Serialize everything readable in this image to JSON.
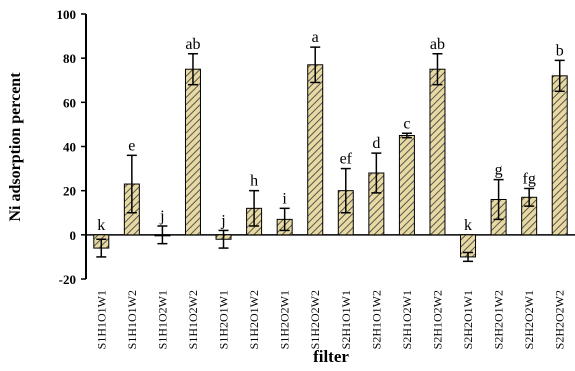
{
  "chart_data": {
    "type": "bar",
    "title": "",
    "xlabel": "filter",
    "ylabel": "Ni adsorption percent",
    "ylim": [
      -20,
      100
    ],
    "yticks": [
      -20,
      0,
      20,
      40,
      60,
      80,
      100
    ],
    "categories": [
      "S1H1O1W1",
      "S1H1O1W2",
      "S1H1O2W1",
      "S1H1O2W2",
      "S1H2O1W1",
      "S1H2O1W2",
      "S1H2O2W1",
      "S1H2O2W2",
      "S2H1O1W1",
      "S2H1O1W2",
      "S2H1O2W1",
      "S2H1O2W2",
      "S2H2O1W1",
      "S2H2O1W2",
      "S2H2O2W1",
      "S2H2O2W2"
    ],
    "values": [
      -6,
      23,
      0,
      75,
      -2,
      12,
      7,
      77,
      20,
      28,
      45,
      75,
      -10,
      16,
      17,
      72
    ],
    "errors": [
      4,
      13,
      4,
      7,
      4,
      8,
      5,
      8,
      10,
      9,
      1,
      7,
      2,
      9,
      4,
      7
    ],
    "labels": [
      "k",
      "e",
      "j",
      "ab",
      "j",
      "h",
      "i",
      "a",
      "ef",
      "d",
      "c",
      "ab",
      "k",
      "g",
      "fg",
      "b"
    ],
    "bar_color": "#e8d9a0",
    "hatch_color": "#555555",
    "grid": false,
    "legend": "none"
  }
}
